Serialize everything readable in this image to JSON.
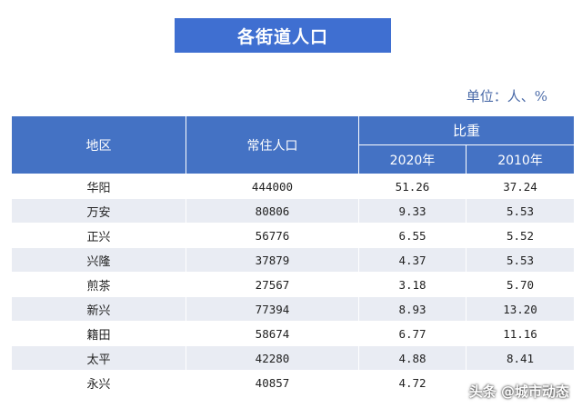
{
  "title": "各街道人口",
  "unit_note": "单位：人、%",
  "table": {
    "headers": {
      "region": "地区",
      "population": "常住人口",
      "ratio": "比重",
      "year_2020": "2020年",
      "year_2010": "2010年"
    },
    "rows": [
      {
        "region": "华阳",
        "population": "444000",
        "ratio_2020": "51.26",
        "ratio_2010": "37.24"
      },
      {
        "region": "万安",
        "population": "80806",
        "ratio_2020": "9.33",
        "ratio_2010": "5.53"
      },
      {
        "region": "正兴",
        "population": "56776",
        "ratio_2020": "6.55",
        "ratio_2010": "5.52"
      },
      {
        "region": "兴隆",
        "population": "37879",
        "ratio_2020": "4.37",
        "ratio_2010": "5.53"
      },
      {
        "region": "煎茶",
        "population": "27567",
        "ratio_2020": "3.18",
        "ratio_2010": "5.70"
      },
      {
        "region": "新兴",
        "population": "77394",
        "ratio_2020": "8.93",
        "ratio_2010": "13.20"
      },
      {
        "region": "籍田",
        "population": "58674",
        "ratio_2020": "6.77",
        "ratio_2010": "11.16"
      },
      {
        "region": "太平",
        "population": "42280",
        "ratio_2020": "4.88",
        "ratio_2010": "8.41"
      },
      {
        "region": "永兴",
        "population": "40857",
        "ratio_2020": "4.72",
        "ratio_2010": ""
      }
    ]
  },
  "watermark": "头条 @城市动态",
  "colors": {
    "banner": "#3f6fd1",
    "header": "#4472c4",
    "stripe": "#e9ecf3",
    "unit_text": "#4a6aa8"
  }
}
